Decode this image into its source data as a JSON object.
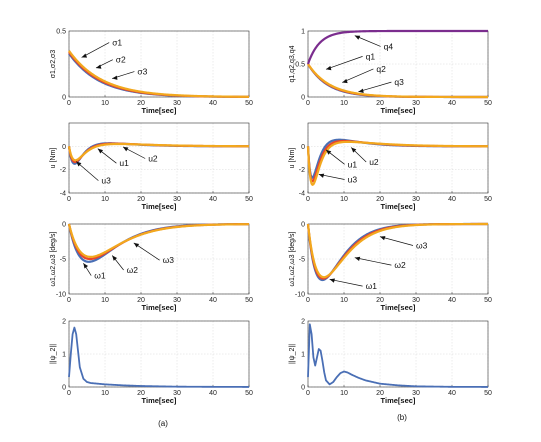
{
  "captions": [
    "(a)",
    "(b)"
  ],
  "colors": {
    "c1": "#4a6fb5",
    "c2": "#e8462a",
    "c3": "#f2a81e",
    "c4": "#7b2d8e"
  },
  "chart_data": [
    {
      "id": "a1",
      "type": "line",
      "xlabel": "Time[sec]",
      "ylabel": "σ1,σ2,σ3",
      "xlim": [
        0,
        50
      ],
      "ylim": [
        0,
        0.5
      ],
      "xticks": [
        0,
        10,
        20,
        30,
        40,
        50
      ],
      "yticks": [
        0,
        0.5
      ],
      "grid": true,
      "series": [
        {
          "name": "σ1",
          "color": "#4a6fb5",
          "kind": "decay",
          "y0": 0.33,
          "tau": 8.5
        },
        {
          "name": "σ2",
          "color": "#e8462a",
          "kind": "decay",
          "y0": 0.34,
          "tau": 8.8
        },
        {
          "name": "σ3",
          "color": "#f2a81e",
          "kind": "decay",
          "y0": 0.35,
          "tau": 9.2
        }
      ],
      "annotations": [
        {
          "text": "σ1",
          "tx": 12,
          "ty": 0.39,
          "ax": 3.5,
          "ay": 0.3
        },
        {
          "text": "σ2",
          "tx": 13,
          "ty": 0.26,
          "ax": 7.5,
          "ay": 0.22
        },
        {
          "text": "σ3",
          "tx": 19,
          "ty": 0.17,
          "ax": 12,
          "ay": 0.14
        }
      ]
    },
    {
      "id": "b1",
      "type": "line",
      "xlabel": "Time[sec]",
      "ylabel": "q1,q2,q3,q4",
      "xlim": [
        0,
        50
      ],
      "ylim": [
        0,
        1
      ],
      "xticks": [
        0,
        10,
        20,
        30,
        40,
        50
      ],
      "yticks": [
        0,
        0.5,
        1
      ],
      "grid": true,
      "series": [
        {
          "name": "q1",
          "color": "#4a6fb5",
          "kind": "decay",
          "y0": 0.5,
          "tau": 5.5
        },
        {
          "name": "q2",
          "color": "#e8462a",
          "kind": "decay",
          "y0": 0.5,
          "tau": 5.8
        },
        {
          "name": "q3",
          "color": "#f2a81e",
          "kind": "decay",
          "y0": 0.5,
          "tau": 6.1
        },
        {
          "name": "q4",
          "color": "#7b2d8e",
          "kind": "rise",
          "y0": 0.5,
          "y1": 1.0,
          "tau": 3.2
        }
      ],
      "annotations": [
        {
          "text": "q4",
          "tx": 21,
          "ty": 0.72,
          "ax": 13,
          "ay": 0.93
        },
        {
          "text": "q1",
          "tx": 16,
          "ty": 0.57,
          "ax": 5,
          "ay": 0.42
        },
        {
          "text": "q2",
          "tx": 19,
          "ty": 0.38,
          "ax": 9.5,
          "ay": 0.22
        },
        {
          "text": "q3",
          "tx": 24,
          "ty": 0.18,
          "ax": 14,
          "ay": 0.08
        }
      ]
    },
    {
      "id": "a2",
      "type": "line",
      "xlabel": "Time[sec]",
      "ylabel": "u [Nm]",
      "xlim": [
        0,
        50
      ],
      "ylim": [
        -4,
        2
      ],
      "xticks": [
        0,
        10,
        20,
        30,
        40,
        50
      ],
      "yticks": [
        -4,
        -2,
        0
      ],
      "grid": true,
      "series": [
        {
          "name": "u1",
          "color": "#4a6fb5",
          "kind": "ctrl",
          "A": -1.5,
          "tp": 1.6,
          "over": 0.35,
          "to": 6,
          "tau": 4
        },
        {
          "name": "u2",
          "color": "#e8462a",
          "kind": "ctrl",
          "A": -1.35,
          "tp": 1.7,
          "over": 0.3,
          "to": 7,
          "tau": 4.5
        },
        {
          "name": "u3",
          "color": "#f2a81e",
          "kind": "ctrl",
          "A": -1.2,
          "tp": 1.8,
          "over": 0.25,
          "to": 8,
          "tau": 5
        }
      ],
      "annotations": [
        {
          "text": "u1",
          "tx": 14,
          "ty": -1.7,
          "ax": 8,
          "ay": -0.2
        },
        {
          "text": "u2",
          "tx": 22,
          "ty": -1.3,
          "ax": 15,
          "ay": -0.05
        },
        {
          "text": "u3",
          "tx": 9,
          "ty": -3.2,
          "ax": 2,
          "ay": -1.3
        }
      ]
    },
    {
      "id": "b2",
      "type": "line",
      "xlabel": "Time[sec]",
      "ylabel": "u [Nm]",
      "xlim": [
        0,
        50
      ],
      "ylim": [
        -4,
        2
      ],
      "xticks": [
        0,
        10,
        20,
        30,
        40,
        50
      ],
      "yticks": [
        -4,
        -2,
        0
      ],
      "grid": true,
      "series": [
        {
          "name": "u1",
          "color": "#4a6fb5",
          "kind": "ctrl",
          "A": -2.7,
          "tp": 1.2,
          "over": 0.7,
          "to": 5,
          "tau": 3
        },
        {
          "name": "u2",
          "color": "#e8462a",
          "kind": "ctrl",
          "A": -3.0,
          "tp": 1.25,
          "over": 0.55,
          "to": 6,
          "tau": 3.5
        },
        {
          "name": "u3",
          "color": "#f2a81e",
          "kind": "ctrl",
          "A": -3.3,
          "tp": 1.3,
          "over": 0.45,
          "to": 7,
          "tau": 4
        }
      ],
      "annotations": [
        {
          "text": "u1",
          "tx": 11,
          "ty": -1.8,
          "ax": 5,
          "ay": -0.3
        },
        {
          "text": "u2",
          "tx": 17,
          "ty": -1.6,
          "ax": 12,
          "ay": -0.1
        },
        {
          "text": "u3",
          "tx": 11,
          "ty": -3.1,
          "ax": 3,
          "ay": -2.4
        }
      ]
    },
    {
      "id": "a3",
      "type": "line",
      "xlabel": "Time[sec]",
      "ylabel": "ω1,ω2,ω3 [deg/s]",
      "xlim": [
        0,
        50
      ],
      "ylim": [
        -10,
        0
      ],
      "xticks": [
        0,
        10,
        20,
        30,
        40,
        50
      ],
      "yticks": [
        -10,
        -5,
        0
      ],
      "grid": true,
      "series": [
        {
          "name": "ω1",
          "color": "#4a6fb5",
          "kind": "dip",
          "A": -5.4,
          "tp": 5.5,
          "tau": 9
        },
        {
          "name": "ω2",
          "color": "#e8462a",
          "kind": "dip",
          "A": -5.0,
          "tp": 5.8,
          "tau": 9.5
        },
        {
          "name": "ω3",
          "color": "#f2a81e",
          "kind": "dip",
          "A": -4.7,
          "tp": 6.0,
          "tau": 10
        }
      ],
      "annotations": [
        {
          "text": "ω1",
          "tx": 7,
          "ty": -7.8,
          "ax": 4,
          "ay": -5.6
        },
        {
          "text": "ω2",
          "tx": 16,
          "ty": -7.0,
          "ax": 12,
          "ay": -4.5
        },
        {
          "text": "ω3",
          "tx": 26,
          "ty": -5.6,
          "ax": 18,
          "ay": -2.7
        }
      ]
    },
    {
      "id": "b3",
      "type": "line",
      "xlabel": "Time[sec]",
      "ylabel": "ω1,ω2,ω3 [deg/s]",
      "xlim": [
        0,
        50
      ],
      "ylim": [
        -10,
        0
      ],
      "xticks": [
        0,
        10,
        20,
        30,
        40,
        50
      ],
      "yticks": [
        -10,
        -5,
        0
      ],
      "grid": true,
      "series": [
        {
          "name": "ω1",
          "color": "#4a6fb5",
          "kind": "dip",
          "A": -8.0,
          "tp": 4.0,
          "tau": 6
        },
        {
          "name": "ω2",
          "color": "#e8462a",
          "kind": "dip",
          "A": -7.8,
          "tp": 4.2,
          "tau": 6.5
        },
        {
          "name": "ω3",
          "color": "#f2a81e",
          "kind": "dip",
          "A": -7.6,
          "tp": 4.4,
          "tau": 7
        }
      ],
      "annotations": [
        {
          "text": "ω1",
          "tx": 16,
          "ty": -9.3,
          "ax": 6,
          "ay": -7.9
        },
        {
          "text": "ω2",
          "tx": 24,
          "ty": -6.3,
          "ax": 13,
          "ay": -4.8
        },
        {
          "text": "ω3",
          "tx": 30,
          "ty": -3.5,
          "ax": 20,
          "ay": -1.8
        }
      ]
    },
    {
      "id": "a4",
      "type": "line",
      "xlabel": "Time[sec]",
      "ylabel": "||ψ_2||",
      "xlim": [
        0,
        50
      ],
      "ylim": [
        0,
        2
      ],
      "xticks": [
        0,
        10,
        20,
        30,
        40,
        50
      ],
      "yticks": [
        0,
        1,
        2
      ],
      "grid": true,
      "series": [
        {
          "name": "",
          "color": "#4a6fb5",
          "kind": "points",
          "x": [
            0,
            0.5,
            1,
            1.5,
            2,
            2.5,
            3,
            4,
            5,
            6,
            8,
            10,
            15,
            20,
            30,
            40,
            50
          ],
          "y": [
            0.3,
            1.0,
            1.6,
            1.8,
            1.6,
            1.1,
            0.6,
            0.25,
            0.15,
            0.12,
            0.1,
            0.08,
            0.05,
            0.03,
            0.01,
            0.005,
            0.002
          ]
        }
      ],
      "annotations": []
    },
    {
      "id": "b4",
      "type": "line",
      "xlabel": "Time[sec]",
      "ylabel": "||ψ_2||",
      "xlim": [
        0,
        50
      ],
      "ylim": [
        0,
        2
      ],
      "xticks": [
        0,
        10,
        20,
        30,
        40,
        50
      ],
      "yticks": [
        0,
        1,
        2
      ],
      "grid": true,
      "series": [
        {
          "name": "",
          "color": "#4a6fb5",
          "kind": "points",
          "x": [
            0,
            0.5,
            1,
            1.5,
            2,
            2.5,
            3,
            3.5,
            4,
            4.5,
            5,
            6,
            7,
            8,
            9,
            10,
            11,
            12,
            14,
            16,
            20,
            25,
            30,
            40,
            50
          ],
          "y": [
            0.3,
            1.9,
            1.6,
            0.9,
            0.65,
            0.9,
            1.15,
            1.1,
            0.8,
            0.45,
            0.2,
            0.08,
            0.15,
            0.3,
            0.42,
            0.47,
            0.44,
            0.38,
            0.28,
            0.2,
            0.1,
            0.05,
            0.02,
            0.005,
            0.002
          ]
        }
      ],
      "annotations": []
    }
  ]
}
